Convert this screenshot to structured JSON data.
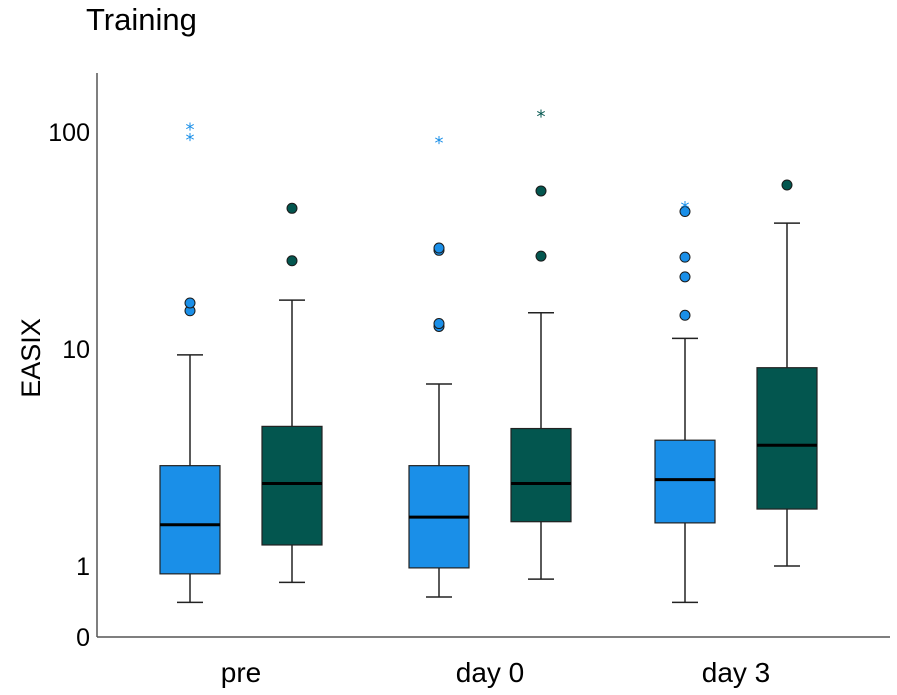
{
  "chart_data": {
    "type": "box",
    "title": "Training",
    "ylabel": "EASIX",
    "xlabel": "",
    "yscale": "log",
    "ylim": [
      0.5,
      200
    ],
    "yticks": [
      {
        "label": "0",
        "value": 0.5
      },
      {
        "label": "1",
        "value": 1
      },
      {
        "label": "10",
        "value": 10
      },
      {
        "label": "100",
        "value": 100
      }
    ],
    "categories": [
      "pre",
      "day 0",
      "day 3"
    ],
    "grid": false,
    "legend": "none",
    "series_colors": [
      "#1a8fe8",
      "#03564f"
    ],
    "series": [
      {
        "color": "#1a8fe8",
        "boxes": [
          {
            "whislo": 0.68,
            "q1": 0.92,
            "med": 1.55,
            "q3": 2.9,
            "whishi": 9.4,
            "outliers": [
              15,
              16.3,
              95,
              106
            ],
            "extremes": [
              95,
              106
            ]
          },
          {
            "whislo": 0.72,
            "q1": 0.98,
            "med": 1.68,
            "q3": 2.9,
            "whishi": 6.9,
            "outliers": [
              12.7,
              13.1,
              28.5,
              29.2,
              92
            ],
            "extremes": [
              92
            ]
          },
          {
            "whislo": 0.68,
            "q1": 1.58,
            "med": 2.5,
            "q3": 3.8,
            "whishi": 11.2,
            "outliers": [
              14.3,
              21.5,
              26.5,
              43,
              46
            ],
            "extremes": [
              46
            ]
          }
        ]
      },
      {
        "color": "#03564f",
        "boxes": [
          {
            "whislo": 0.84,
            "q1": 1.25,
            "med": 2.4,
            "q3": 4.4,
            "whishi": 16.8,
            "outliers": [
              25.5,
              44.5
            ],
            "extremes": []
          },
          {
            "whislo": 0.87,
            "q1": 1.6,
            "med": 2.4,
            "q3": 4.3,
            "whishi": 14.7,
            "outliers": [
              26.8,
              53.5,
              122
            ],
            "extremes": [
              122
            ]
          },
          {
            "whislo": 1.0,
            "q1": 1.83,
            "med": 3.6,
            "q3": 8.2,
            "whishi": 38,
            "outliers": [
              57
            ],
            "extremes": []
          }
        ]
      }
    ]
  }
}
